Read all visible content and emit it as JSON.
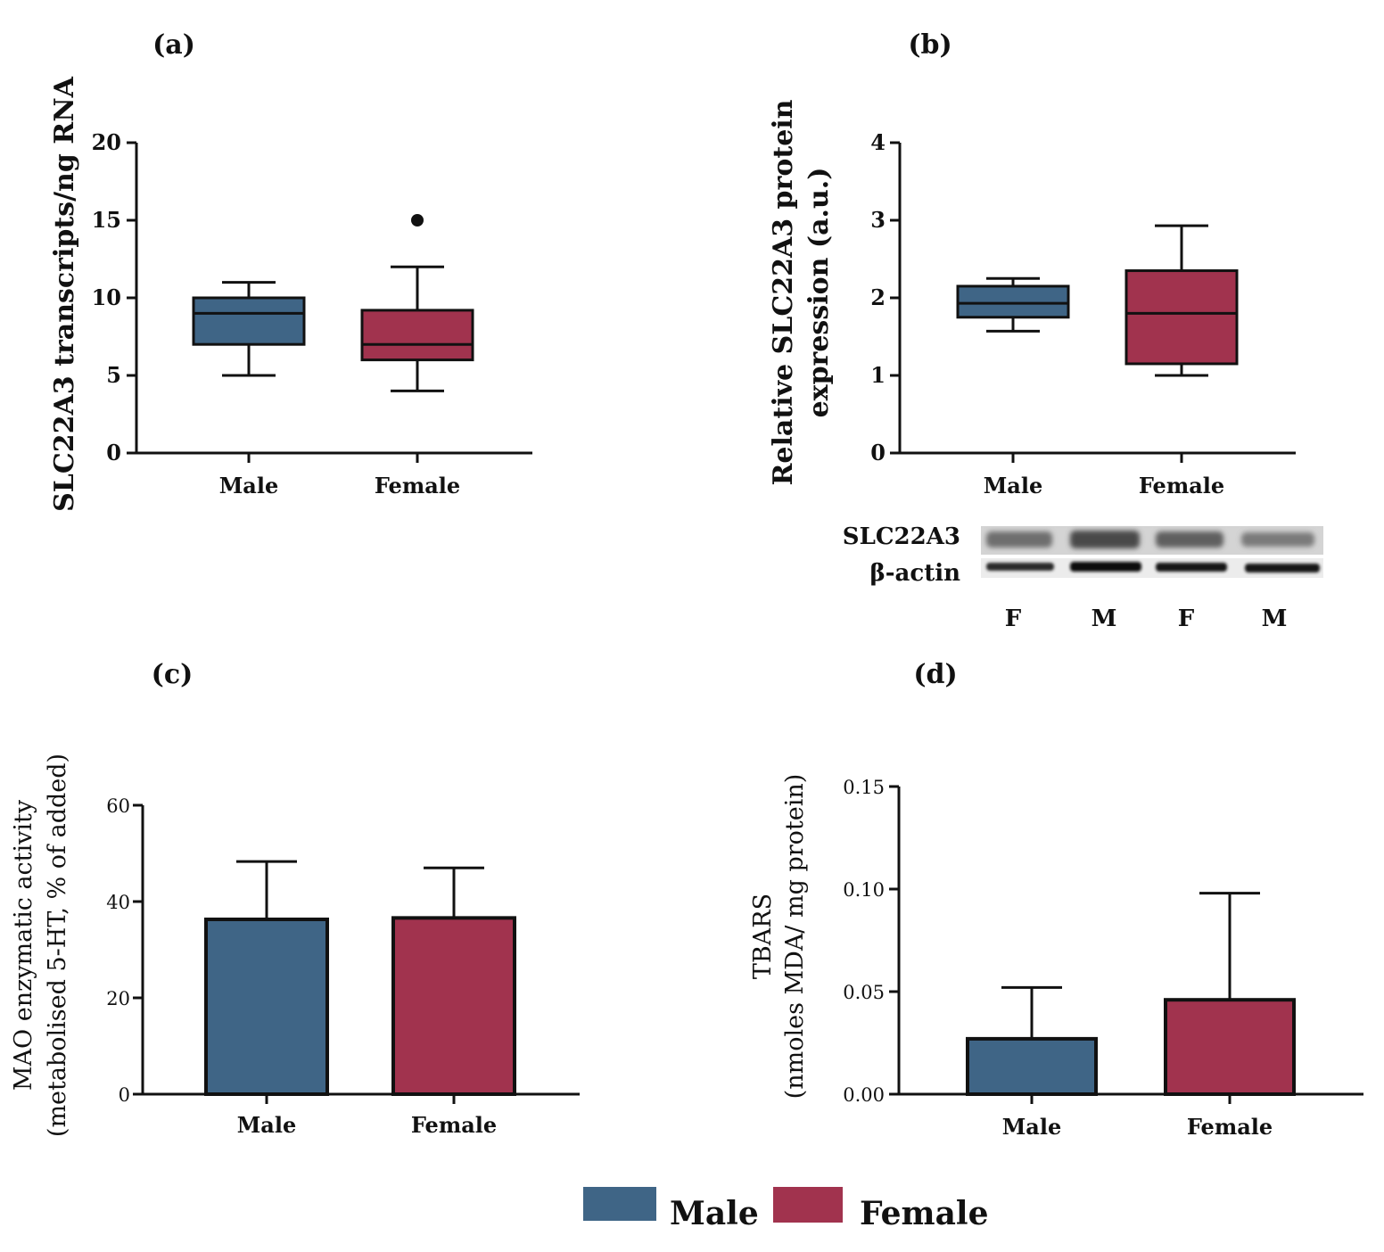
{
  "colors": {
    "male": "#3F6586",
    "female": "#A1334E",
    "axis": "#111111"
  },
  "chart_data": [
    {
      "id": "a",
      "panel_label": "(a)",
      "type": "box",
      "ylabel": [
        "SLC22A3 transcripts/ng RNA"
      ],
      "ylim": [
        0,
        20
      ],
      "yticks": [
        0,
        5,
        10,
        15,
        20
      ],
      "categories": [
        "Male",
        "Female"
      ],
      "boxes": [
        {
          "name": "Male",
          "min": 5,
          "q1": 7,
          "median": 9,
          "q3": 10,
          "max": 11,
          "outliers": []
        },
        {
          "name": "Female",
          "min": 4,
          "q1": 6,
          "median": 7,
          "q3": 9.2,
          "max": 12,
          "outliers": [
            15
          ]
        }
      ]
    },
    {
      "id": "b",
      "panel_label": "(b)",
      "type": "box",
      "ylabel": [
        "Relative SLC22A3 protein",
        "expression (a.u.)"
      ],
      "ylim": [
        0,
        4
      ],
      "yticks": [
        0,
        1,
        2,
        3,
        4
      ],
      "categories": [
        "Male",
        "Female"
      ],
      "boxes": [
        {
          "name": "Male",
          "min": 1.57,
          "q1": 1.75,
          "median": 1.93,
          "q3": 2.15,
          "max": 2.25,
          "outliers": []
        },
        {
          "name": "Female",
          "min": 1.0,
          "q1": 1.15,
          "median": 1.8,
          "q3": 2.35,
          "max": 2.93,
          "outliers": []
        }
      ]
    },
    {
      "id": "c",
      "panel_label": "(c)",
      "type": "bar",
      "ylabel": [
        "MAO enzymatic activity",
        "(metabolised 5-HT, % of added)"
      ],
      "ylim": [
        0,
        60
      ],
      "yticks": [
        0,
        20,
        40,
        60
      ],
      "categories": [
        "Male",
        "Female"
      ],
      "values": [
        36.3,
        36.6
      ],
      "errors": [
        12.0,
        10.4
      ]
    },
    {
      "id": "d",
      "panel_label": "(d)",
      "type": "bar",
      "ylabel": [
        "TBARS",
        "(nmoles MDA/ mg protein)"
      ],
      "ylim": [
        0,
        0.15
      ],
      "yticks": [
        0,
        0.05,
        0.1,
        0.15
      ],
      "ytick_labels": [
        "0.00",
        "0.05",
        "0.10",
        "0.15"
      ],
      "categories": [
        "Male",
        "Female"
      ],
      "values": [
        0.027,
        0.046
      ],
      "errors": [
        0.025,
        0.052
      ]
    }
  ],
  "blot": {
    "rows": [
      "SLC22A3",
      "β-actin"
    ],
    "lanes": [
      "F",
      "M",
      "F",
      "M"
    ]
  },
  "legend": [
    {
      "label": "Male",
      "color": "#3F6586"
    },
    {
      "label": "Female",
      "color": "#A1334E"
    }
  ]
}
